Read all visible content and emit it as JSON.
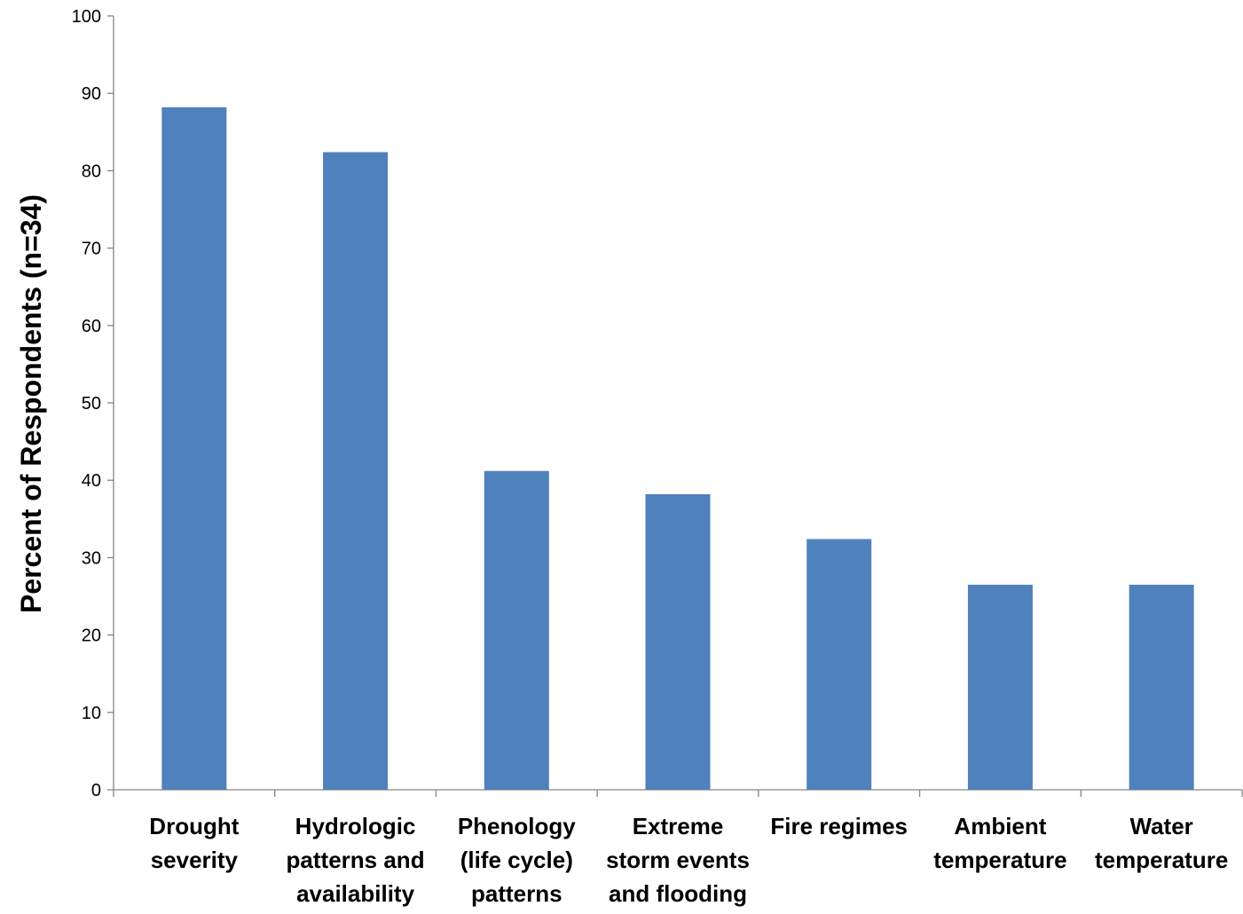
{
  "chart_data": {
    "type": "bar",
    "title": "",
    "xlabel": "",
    "ylabel": "Percent of Respondents (n=34)",
    "ylim": [
      0,
      100
    ],
    "yticks": [
      0,
      10,
      20,
      30,
      40,
      50,
      60,
      70,
      80,
      90,
      100
    ],
    "grid": false,
    "legend": "none",
    "categories": [
      [
        "Drought",
        "severity"
      ],
      [
        "Hydrologic",
        "patterns and",
        "availability"
      ],
      [
        "Phenology",
        "(life cycle)",
        "patterns"
      ],
      [
        "Extreme",
        "storm events",
        "and flooding"
      ],
      [
        "Fire regimes"
      ],
      [
        "Ambient",
        "temperature"
      ],
      [
        "Water",
        "temperature"
      ]
    ],
    "values": [
      88.2,
      82.4,
      41.2,
      38.2,
      32.4,
      26.5,
      26.5
    ],
    "colors": {
      "bar": "#4F81BD",
      "axis": "#868686"
    }
  }
}
